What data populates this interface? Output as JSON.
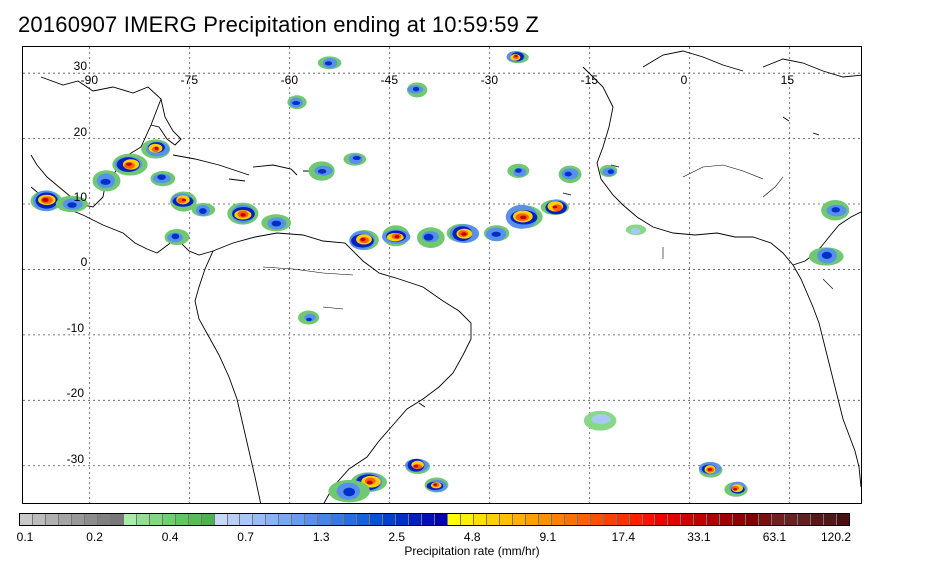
{
  "title": "20160907 IMERG Precipitation ending at 10:59:59 Z",
  "map": {
    "lon_min": -100,
    "lon_max": 26,
    "lat_min": -36,
    "lat_max": 34,
    "grid_lons": [
      -90,
      -75,
      -60,
      -45,
      -30,
      -15,
      0,
      15
    ],
    "grid_lats": [
      30,
      20,
      10,
      0,
      -10,
      -20,
      -30
    ],
    "lon_labels": [
      "-90",
      "-75",
      "-60",
      "-45",
      "-30",
      "-15",
      "0",
      "15"
    ],
    "lat_labels": [
      "30",
      "20",
      "10",
      "0",
      "-10",
      "-20",
      "-30"
    ]
  },
  "colorbar": {
    "colors": [
      "#c8c8c8",
      "#bcbcbc",
      "#b0b0b0",
      "#a4a4a4",
      "#989898",
      "#8c8c8c",
      "#808080",
      "#787878",
      "#a8eca8",
      "#90e090",
      "#80d880",
      "#70d070",
      "#60c860",
      "#58bc58",
      "#50b050",
      "#c8d8f8",
      "#b8d0f8",
      "#a8c8f8",
      "#98bcf4",
      "#88b4f4",
      "#78a8f0",
      "#689cf0",
      "#5890ec",
      "#4884e8",
      "#3878e4",
      "#286ce0",
      "#1860dc",
      "#0850d8",
      "#0040d0",
      "#0030c8",
      "#0020c0",
      "#0010b8",
      "#0000b0",
      "#ffff00",
      "#fff000",
      "#ffe000",
      "#ffd000",
      "#ffc000",
      "#ffb000",
      "#ffa000",
      "#ff9000",
      "#ff8000",
      "#ff7000",
      "#ff6000",
      "#ff5000",
      "#ff4000",
      "#ff3000",
      "#ff2000",
      "#ff1000",
      "#f00000",
      "#e00000",
      "#d00000",
      "#c00000",
      "#b00000",
      "#a00000",
      "#900000",
      "#800000",
      "#781010",
      "#702020",
      "#682020",
      "#602020",
      "#581818",
      "#501818",
      "#481010"
    ],
    "ticks": [
      "0.1",
      "0.2",
      "0.4",
      "0.7",
      "1.3",
      "2.5",
      "4.8",
      "9.1",
      "17.4",
      "33.1",
      "63.1",
      "120.2"
    ],
    "label": "Precipitation rate (mm/hr)"
  },
  "precip_cells": [
    {
      "lon": -96.5,
      "lat": 10.5,
      "r": 1.6,
      "level": "heavy"
    },
    {
      "lon": -92.5,
      "lat": 10.0,
      "r": 1.3,
      "level": "moderate"
    },
    {
      "lon": -87.5,
      "lat": 13.5,
      "r": 1.4,
      "level": "moderate"
    },
    {
      "lon": -84.0,
      "lat": 16.0,
      "r": 1.5,
      "level": "heavy"
    },
    {
      "lon": -80.0,
      "lat": 18.5,
      "r": 1.2,
      "level": "heavy"
    },
    {
      "lon": -79.0,
      "lat": 14.0,
      "r": 1.1,
      "level": "moderate"
    },
    {
      "lon": -76.0,
      "lat": 10.5,
      "r": 1.3,
      "level": "heavy"
    },
    {
      "lon": -73.0,
      "lat": 9.0,
      "r": 1.1,
      "level": "moderate"
    },
    {
      "lon": -77.0,
      "lat": 5.0,
      "r": 1.2,
      "level": "moderate"
    },
    {
      "lon": -67.0,
      "lat": 8.5,
      "r": 1.4,
      "level": "heavy"
    },
    {
      "lon": -62.0,
      "lat": 7.0,
      "r": 1.2,
      "level": "moderate"
    },
    {
      "lon": -55.0,
      "lat": 15.0,
      "r": 1.2,
      "level": "moderate"
    },
    {
      "lon": -49.0,
      "lat": 4.5,
      "r": 1.5,
      "level": "heavy"
    },
    {
      "lon": -44.0,
      "lat": 5.0,
      "r": 1.4,
      "level": "heavy"
    },
    {
      "lon": -39.0,
      "lat": 5.0,
      "r": 1.3,
      "level": "moderate"
    },
    {
      "lon": -34.0,
      "lat": 5.5,
      "r": 1.5,
      "level": "heavy"
    },
    {
      "lon": -29.0,
      "lat": 5.5,
      "r": 1.3,
      "level": "moderate"
    },
    {
      "lon": -25.0,
      "lat": 8.0,
      "r": 1.8,
      "level": "heavy"
    },
    {
      "lon": -20.0,
      "lat": 9.5,
      "r": 1.3,
      "level": "heavy"
    },
    {
      "lon": -18.0,
      "lat": 14.5,
      "r": 1.1,
      "level": "moderate"
    },
    {
      "lon": -25.5,
      "lat": 15.0,
      "r": 1.0,
      "level": "moderate"
    },
    {
      "lon": -12.0,
      "lat": 15.0,
      "r": 0.9,
      "level": "moderate"
    },
    {
      "lon": -54.0,
      "lat": 31.5,
      "r": 1.0,
      "level": "moderate"
    },
    {
      "lon": -41.0,
      "lat": 27.5,
      "r": 1.0,
      "level": "moderate"
    },
    {
      "lon": -59.0,
      "lat": 25.5,
      "r": 1.0,
      "level": "moderate"
    },
    {
      "lon": -26.0,
      "lat": 32.5,
      "r": 0.9,
      "level": "heavy"
    },
    {
      "lon": -50.0,
      "lat": 17.0,
      "r": 1.0,
      "level": "moderate"
    },
    {
      "lon": -57.0,
      "lat": -7.5,
      "r": 0.9,
      "level": "moderate"
    },
    {
      "lon": -48.0,
      "lat": -32.5,
      "r": 1.6,
      "level": "heavy"
    },
    {
      "lon": -41.0,
      "lat": -30.0,
      "r": 1.2,
      "level": "heavy"
    },
    {
      "lon": -38.0,
      "lat": -33.0,
      "r": 1.0,
      "level": "heavy"
    },
    {
      "lon": -51.0,
      "lat": -34.0,
      "r": 1.8,
      "level": "moderate"
    },
    {
      "lon": 3.0,
      "lat": -30.5,
      "r": 1.1,
      "level": "heavy"
    },
    {
      "lon": 7.0,
      "lat": -33.5,
      "r": 1.0,
      "level": "heavy"
    },
    {
      "lon": 20.5,
      "lat": 2.0,
      "r": 1.5,
      "level": "moderate"
    },
    {
      "lon": 22.0,
      "lat": 9.0,
      "r": 1.3,
      "level": "moderate"
    },
    {
      "lon": -8.0,
      "lat": 6.0,
      "r": 0.9,
      "level": "light"
    },
    {
      "lon": -13.5,
      "lat": -23.0,
      "r": 1.6,
      "level": "light"
    }
  ]
}
